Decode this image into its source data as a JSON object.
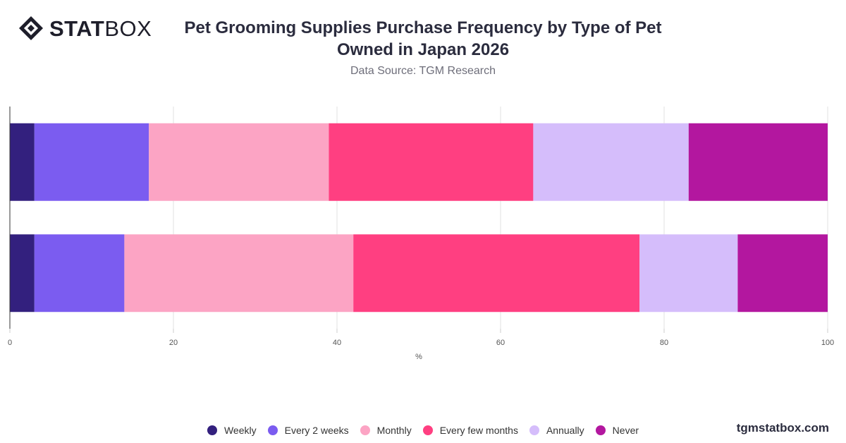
{
  "brand": {
    "logo_bold": "STAT",
    "logo_light": "BOX",
    "watermark": "tgmstatbox.com"
  },
  "chart_data": {
    "type": "bar",
    "orientation": "horizontal",
    "stacked": true,
    "title": "Pet Grooming Supplies Purchase Frequency by Type of Pet Owned in Japan 2026",
    "subtitle": "Data Source: TGM Research",
    "xlabel": "%",
    "ylabel": "",
    "xlim": [
      0,
      100
    ],
    "xticks": [
      "0",
      "20",
      "40",
      "60",
      "80",
      "100"
    ],
    "categories": [
      "",
      ""
    ],
    "grid": true,
    "legend_position": "bottom",
    "series": [
      {
        "name": "Weekly",
        "color": "#33207e",
        "values": [
          3,
          3
        ]
      },
      {
        "name": "Every 2 weeks",
        "color": "#7b5cf0",
        "values": [
          14,
          11
        ]
      },
      {
        "name": "Monthly",
        "color": "#fca4c4",
        "values": [
          22,
          28
        ]
      },
      {
        "name": "Every few months",
        "color": "#ff3f81",
        "values": [
          25,
          35
        ]
      },
      {
        "name": "Annually",
        "color": "#d5bdfb",
        "values": [
          19,
          12
        ]
      },
      {
        "name": "Never",
        "color": "#b3179f",
        "values": [
          17,
          11
        ]
      }
    ]
  }
}
